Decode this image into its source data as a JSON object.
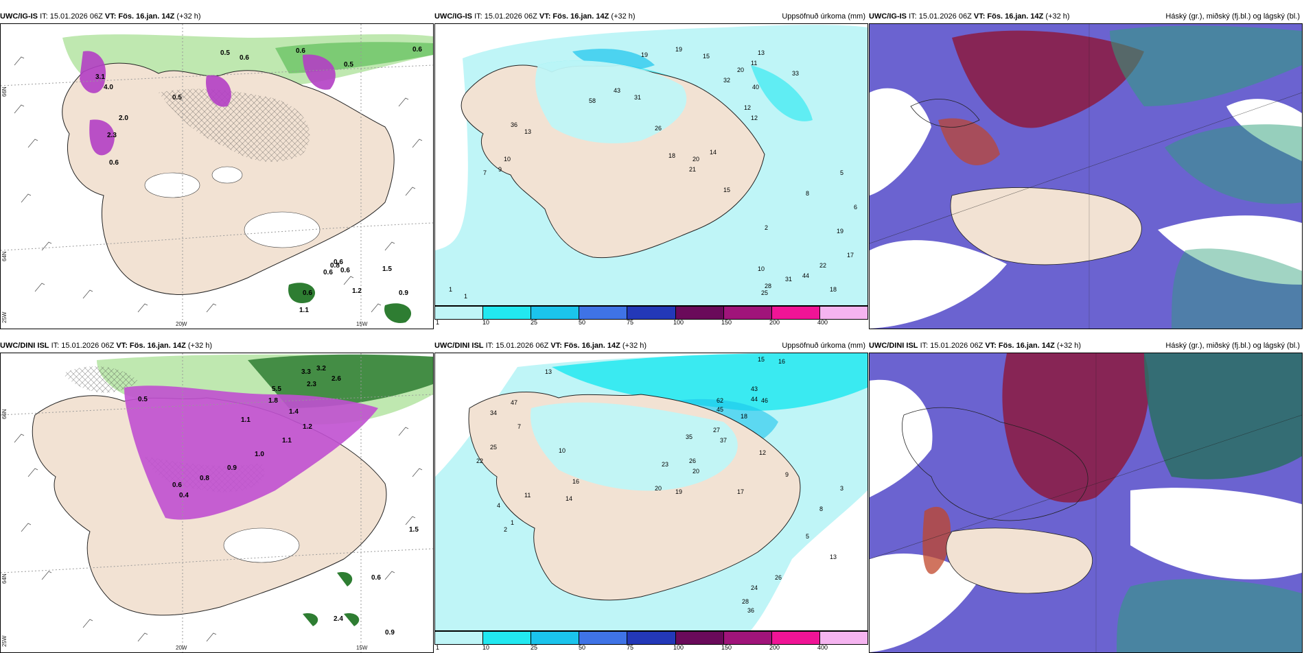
{
  "row1": {
    "p1": {
      "model": "UWC/IG-IS",
      "it": "IT: 15.01.2026 06Z",
      "vt": "VT: Fös. 16.jan. 14Z",
      "lead": "(+32 h)",
      "right": ""
    },
    "p2": {
      "model": "UWC/IG-IS",
      "it": "IT: 15.01.2026 06Z",
      "vt": "VT: Fös. 16.jan. 14Z",
      "lead": "(+32 h)",
      "right": "Uppsöfnuð úrkoma (mm)"
    },
    "p3": {
      "model": "UWC/IG-IS",
      "it": "IT: 15.01.2026 06Z",
      "vt": "VT: Fös. 16.jan. 14Z",
      "lead": "(+32 h)",
      "right": "Háský (gr.), miðský (fj.bl.) og lágský (bl.)"
    }
  },
  "row2": {
    "p1": {
      "model": "UWC/DINI ISL",
      "it": "IT: 15.01.2026 06Z",
      "vt": "VT: Fös. 16.jan. 14Z",
      "lead": "(+32 h)",
      "right": ""
    },
    "p2": {
      "model": "UWC/DINI ISL",
      "it": "IT: 15.01.2026 06Z",
      "vt": "VT: Fös. 16.jan. 14Z",
      "lead": "(+32 h)",
      "right": "Uppsöfnuð úrkoma (mm)"
    },
    "p3": {
      "model": "UWC/DINI ISL",
      "it": "IT: 15.01.2026 06Z",
      "vt": "VT: Fös. 16.jan. 14Z",
      "lead": "(+32 h)",
      "right": "Háský (gr.), miðský (fj.bl.) og lágský (bl.)"
    }
  },
  "axes": {
    "lon_20w": "20W",
    "lon_15w": "15W",
    "lat_66n": "66N",
    "lat_64n": "64N",
    "lon_25w": "25W"
  },
  "colorbar": {
    "ticks": [
      "1",
      "10",
      "25",
      "50",
      "75",
      "100",
      "150",
      "200",
      "400"
    ],
    "colors": [
      "#bff5f7",
      "#22e8f0",
      "#1bc4ec",
      "#3f73e6",
      "#2338b8",
      "#6a0a5a",
      "#a0147a",
      "#f01496",
      "#f5b4f0"
    ]
  },
  "values": {
    "r1_snow": [
      "0.5",
      "0.6",
      "0.6",
      "0.6",
      "0.5",
      "0.5",
      "0.6",
      "0.6",
      "0.8",
      "0.6",
      "0.6",
      "1.2",
      "0.9",
      "1.5",
      "1.1",
      "2.0",
      "3.1",
      "4.0",
      "2.3",
      "0.6"
    ],
    "r1_precip": [
      "19",
      "19",
      "15",
      "32",
      "20",
      "11",
      "13",
      "43",
      "40",
      "33",
      "58",
      "31",
      "36",
      "26",
      "18",
      "20",
      "14",
      "15",
      "12",
      "10",
      "8",
      "28",
      "31",
      "44",
      "22",
      "18",
      "19",
      "25",
      "5",
      "6",
      "2",
      "1",
      "1",
      "12",
      "17",
      "21",
      "13",
      "10",
      "9",
      "7"
    ],
    "r2_snow": [
      "3.3",
      "3.2",
      "2.6",
      "2.3",
      "1.8",
      "1.4",
      "1.2",
      "1.1",
      "1.0",
      "0.9",
      "0.8",
      "0.6",
      "0.5",
      "0.4",
      "1.5",
      "0.6",
      "0.9",
      "2.4",
      "1.1",
      "5.5"
    ],
    "r2_precip": [
      "15",
      "16",
      "13",
      "43",
      "44",
      "46",
      "62",
      "45",
      "37",
      "35",
      "27",
      "23",
      "26",
      "20",
      "19",
      "18",
      "17",
      "20",
      "12",
      "28",
      "24",
      "26",
      "13",
      "36",
      "14",
      "11",
      "10",
      "9",
      "8",
      "3",
      "5",
      "2",
      "1",
      "47",
      "34",
      "22",
      "25",
      "16",
      "4",
      "7"
    ]
  }
}
